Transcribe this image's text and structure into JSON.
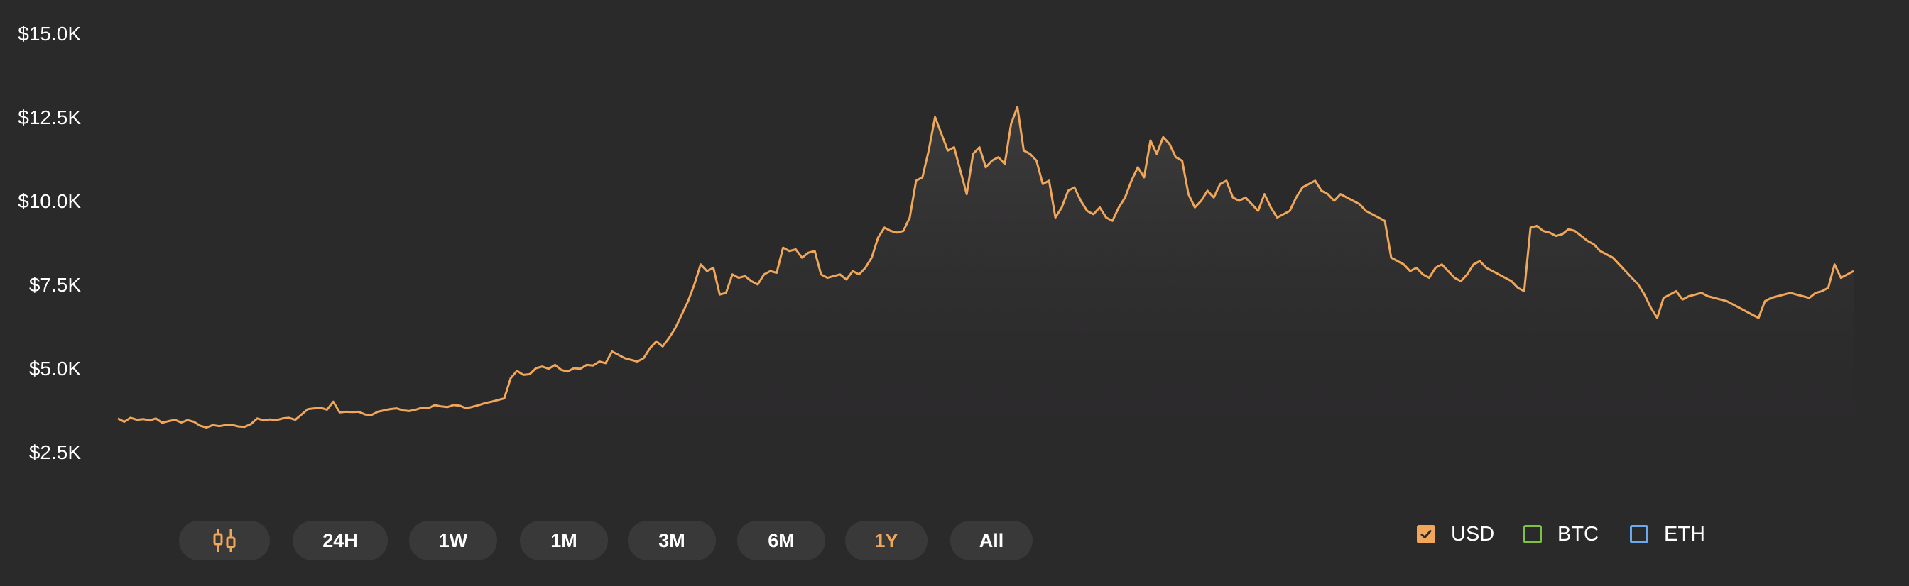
{
  "chart_data": {
    "type": "area",
    "x_axis_label": "",
    "y_axis_label": "",
    "ylim": [
      2500,
      15000
    ],
    "yticks": [
      {
        "value": 15000,
        "label": "$15.0K"
      },
      {
        "value": 12500,
        "label": "$12.5K"
      },
      {
        "value": 10000,
        "label": "$10.0K"
      },
      {
        "value": 7500,
        "label": "$7.5K"
      },
      {
        "value": 5000,
        "label": "$5.0K"
      },
      {
        "value": 2500,
        "label": "$2.5K"
      }
    ],
    "grid": false,
    "series": [
      {
        "name": "USD",
        "color": "#f0a75a",
        "values": [
          3500,
          3400,
          3520,
          3460,
          3480,
          3440,
          3500,
          3370,
          3420,
          3460,
          3380,
          3450,
          3400,
          3280,
          3230,
          3300,
          3270,
          3300,
          3310,
          3260,
          3250,
          3330,
          3500,
          3440,
          3470,
          3450,
          3500,
          3520,
          3460,
          3620,
          3780,
          3800,
          3820,
          3760,
          4000,
          3680,
          3700,
          3690,
          3700,
          3620,
          3600,
          3700,
          3740,
          3780,
          3800,
          3740,
          3720,
          3760,
          3820,
          3800,
          3900,
          3860,
          3840,
          3900,
          3880,
          3800,
          3850,
          3900,
          3960,
          4000,
          4050,
          4100,
          4700,
          4920,
          4800,
          4820,
          5000,
          5050,
          4980,
          5100,
          4950,
          4900,
          5000,
          4980,
          5100,
          5080,
          5200,
          5150,
          5500,
          5400,
          5300,
          5250,
          5200,
          5300,
          5600,
          5800,
          5650,
          5900,
          6200,
          6600,
          7000,
          7500,
          8100,
          7900,
          8000,
          7200,
          7250,
          7800,
          7700,
          7750,
          7600,
          7500,
          7800,
          7900,
          7850,
          8600,
          8500,
          8550,
          8300,
          8450,
          8500,
          7800,
          7700,
          7750,
          7800,
          7650,
          7900,
          7800,
          8000,
          8300,
          8900,
          9200,
          9100,
          9050,
          9100,
          9500,
          10600,
          10700,
          11500,
          12500,
          12000,
          11500,
          11600,
          10900,
          10200,
          11400,
          11600,
          11000,
          11200,
          11300,
          11100,
          12300,
          12800,
          11500,
          11400,
          11200,
          10500,
          10600,
          9500,
          9800,
          10300,
          10400,
          10000,
          9700,
          9600,
          9800,
          9500,
          9400,
          9800,
          10100,
          10600,
          11000,
          10700,
          11800,
          11400,
          11900,
          11700,
          11300,
          11200,
          10200,
          9800,
          10000,
          10300,
          10100,
          10500,
          10600,
          10100,
          10000,
          10100,
          9900,
          9700,
          10200,
          9800,
          9500,
          9600,
          9700,
          10100,
          10400,
          10500,
          10600,
          10300,
          10200,
          10000,
          10200,
          10100,
          10000,
          9900,
          9700,
          9600,
          9500,
          9400,
          8300,
          8200,
          8100,
          7900,
          8000,
          7800,
          7700,
          8000,
          8100,
          7900,
          7700,
          7600,
          7800,
          8100,
          8200,
          8000,
          7900,
          7800,
          7700,
          7600,
          7400,
          7300,
          9200,
          9250,
          9100,
          9050,
          8950,
          9000,
          9150,
          9100,
          8950,
          8800,
          8700,
          8500,
          8400,
          8300,
          8100,
          7900,
          7700,
          7500,
          7200,
          6800,
          6500,
          7100,
          7200,
          7300,
          7050,
          7150,
          7200,
          7250,
          7150,
          7100,
          7050,
          7000,
          6900,
          6800,
          6700,
          6600,
          6500,
          7000,
          7100,
          7150,
          7200,
          7250,
          7200,
          7150,
          7100,
          7250,
          7300,
          7400,
          8100,
          7700,
          7800,
          7900
        ]
      }
    ]
  },
  "toolbar": {
    "buttons": [
      {
        "label": "",
        "icon": "candlestick-icon",
        "active": false
      },
      {
        "label": "24H",
        "active": false
      },
      {
        "label": "1W",
        "active": false
      },
      {
        "label": "1M",
        "active": false
      },
      {
        "label": "3M",
        "active": false
      },
      {
        "label": "6M",
        "active": false
      },
      {
        "label": "1Y",
        "active": true
      },
      {
        "label": "All",
        "active": false
      }
    ]
  },
  "legend": {
    "items": [
      {
        "label": "USD",
        "color": "#f0a75a",
        "checked": true
      },
      {
        "label": "BTC",
        "color": "#7fc241",
        "checked": false
      },
      {
        "label": "ETH",
        "color": "#6aa8f0",
        "checked": false
      }
    ]
  },
  "colors": {
    "background": "#2b2a2b",
    "button_bg": "#3a393a",
    "accent": "#f0a75a",
    "text": "#ffffff"
  }
}
